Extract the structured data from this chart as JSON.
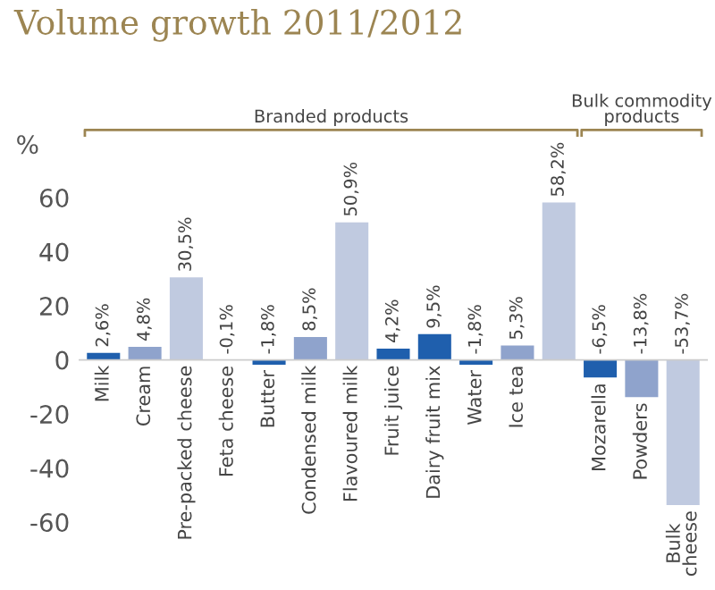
{
  "chart_data": {
    "type": "bar",
    "title": "Volume growth 2011/2012",
    "ylabel": "%",
    "categories": [
      "Milk",
      "Cream",
      "Pre-packed cheese",
      "Feta cheese",
      "Butter",
      "Condensed milk",
      "Flavoured milk",
      "Fruit juice",
      "Dairy fruit mix",
      "Water",
      "Ice tea",
      null,
      "Mozarella",
      "Powders",
      "Bulk\ncheese"
    ],
    "values": [
      2.6,
      4.8,
      30.5,
      -0.1,
      -1.8,
      8.5,
      50.9,
      4.2,
      9.5,
      -1.8,
      5.3,
      58.2,
      -6.5,
      -13.8,
      -53.7
    ],
    "colors": [
      "#1f5fad",
      "#8fa3cc",
      "#c0cae0",
      "#8fa3cc",
      "#1f5fad",
      "#8fa3cc",
      "#c0cae0",
      "#1f5fad",
      "#1f5fad",
      "#1f5fad",
      "#8fa3cc",
      "#c0cae0",
      "#1f5fad",
      "#8fa3cc",
      "#c0cae0"
    ],
    "value_labels": [
      "2,6%",
      "4,8%",
      "30,5%",
      "-0,1%",
      "-1,8%",
      "8,5%",
      "50,9%",
      "4,2%",
      "9,5%",
      "-1,8%",
      "5,3%",
      "58,2%",
      "-6,5%",
      "-13,8%",
      "-53,7%"
    ],
    "annotations": [
      "Branded products",
      "Bulk commodity\nproducts"
    ],
    "ylim": [
      -60,
      60
    ],
    "yticks": [
      -60,
      -40,
      -20,
      0,
      20,
      40,
      60
    ],
    "grid": false
  }
}
